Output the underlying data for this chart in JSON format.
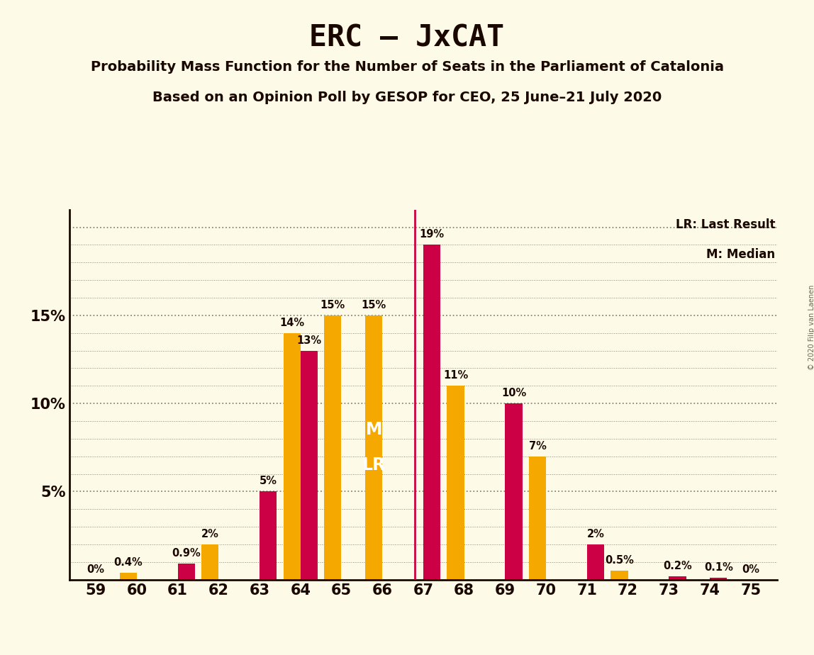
{
  "title": "ERC – JxCAT",
  "subtitle1": "Probability Mass Function for the Number of Seats in the Parliament of Catalonia",
  "subtitle2": "Based on an Opinion Poll by GESOP for CEO, 25 June–21 July 2020",
  "copyright": "© 2020 Filip van Laenen",
  "seats": [
    59,
    60,
    61,
    62,
    63,
    64,
    65,
    66,
    67,
    68,
    69,
    70,
    71,
    72,
    73,
    74,
    75
  ],
  "erc_values": [
    0.0,
    0.0,
    0.9,
    0.0,
    5.0,
    13.0,
    0.0,
    0.0,
    19.0,
    0.0,
    10.0,
    0.0,
    2.0,
    0.0,
    0.2,
    0.1,
    0.0
  ],
  "jxcat_values": [
    0.0,
    0.4,
    0.0,
    2.0,
    0.0,
    14.0,
    15.0,
    15.0,
    0.0,
    11.0,
    0.0,
    7.0,
    0.0,
    0.5,
    0.0,
    0.0,
    0.0
  ],
  "erc_color": "#CC0044",
  "jxcat_color": "#F5A800",
  "bg_color": "#FDFAE8",
  "text_color": "#1A0800",
  "last_result_seat": 67,
  "median_seat": 66,
  "lr_line_color": "#CC0044",
  "ylim_max": 21,
  "bar_width": 0.42,
  "legend_lr": "LR: Last Result",
  "legend_m": "M: Median",
  "label_fontsize": 10.5,
  "title_fontsize": 30,
  "subtitle_fontsize": 14,
  "axis_tick_fontsize": 15
}
